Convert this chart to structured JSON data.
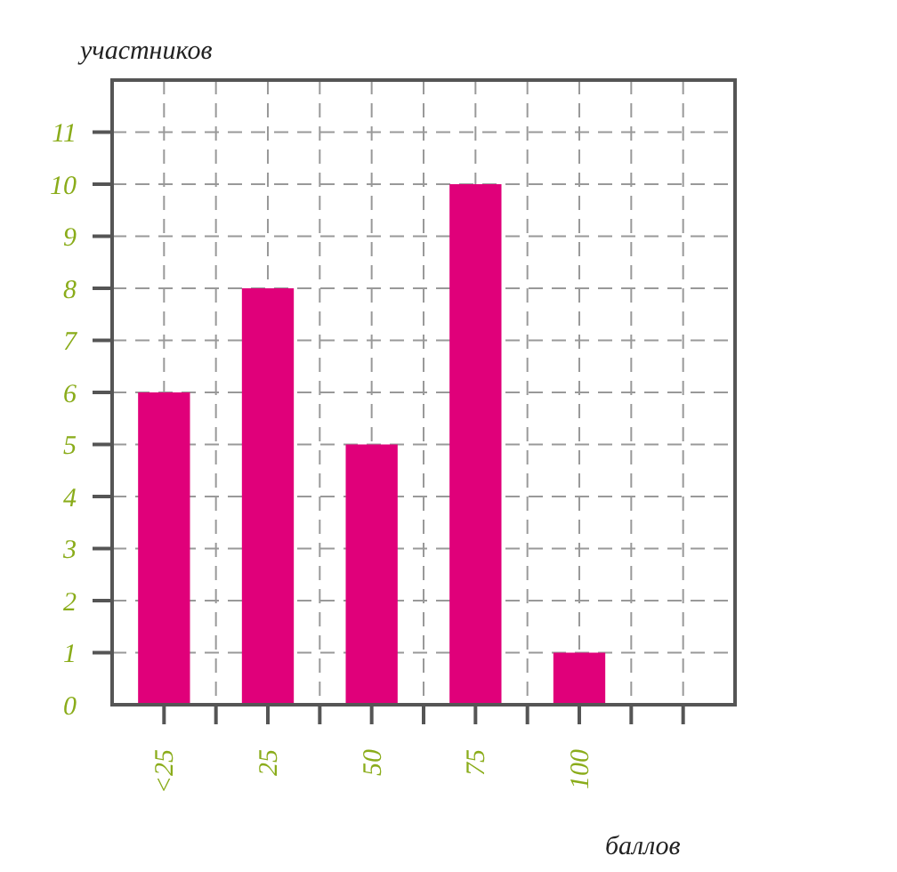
{
  "chart_data": {
    "type": "bar",
    "xlabel": "баллов",
    "ylabel": "участников",
    "categories": [
      "<25",
      "25",
      "50",
      "75",
      "100",
      null
    ],
    "values": [
      6,
      8,
      5,
      10,
      1,
      null
    ],
    "color": "#e0007a",
    "ylim": [
      0,
      12
    ],
    "yticks": [
      0,
      1,
      2,
      3,
      4,
      5,
      6,
      7,
      8,
      9,
      10,
      11
    ],
    "grid": true
  }
}
